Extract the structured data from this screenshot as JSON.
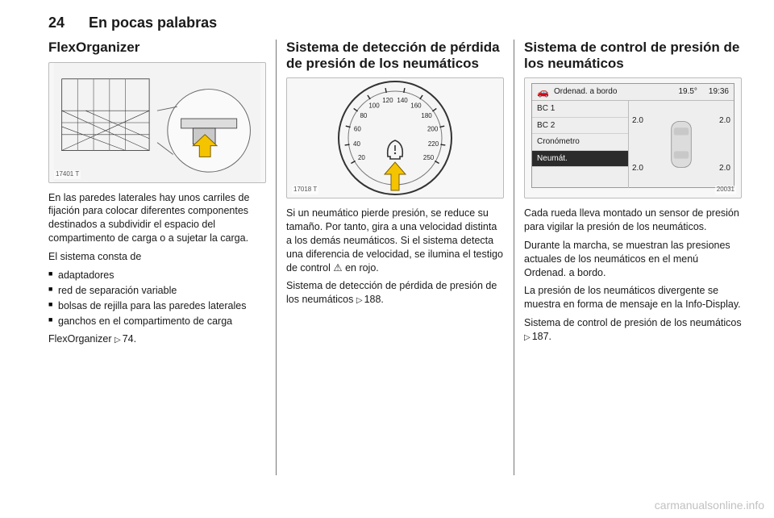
{
  "header": {
    "page_number": "24",
    "chapter_title": "En pocas palabras"
  },
  "col1": {
    "title": "FlexOrganizer",
    "fig_label": "17401 T",
    "intro": "En las paredes laterales hay unos carriles de fijación para colocar diferentes componentes destinados a subdividir el espacio del compartimento de carga o a sujetar la carga.",
    "list_lead": "El sistema consta de",
    "items": [
      "adaptadores",
      "red de separación variable",
      "bolsas de rejilla para las paredes laterales",
      "ganchos en el compartimento de carga"
    ],
    "ref_text": "FlexOrganizer ",
    "ref_page": "74."
  },
  "col2": {
    "title": "Sistema de detección de pérdida de presión de los neumáticos",
    "fig_label": "17018 T",
    "gauge": {
      "ticks": [
        "20",
        "40",
        "60",
        "80",
        "100",
        "120",
        "140",
        "160",
        "180",
        "200",
        "220",
        "250"
      ],
      "arrow_color": "#f5c400",
      "dial_bg": "#f5f5f5",
      "dial_border": "#333333"
    },
    "p1": "Si un neumático pierde presión, se reduce su tamaño. Por tanto, gira a una velocidad distinta a los demás neumáticos. Si el sistema detecta una diferencia de velocidad, se ilumina el testigo de control ",
    "p1_icon": "⚠",
    "p1_tail": " en rojo.",
    "ref_text": "Sistema de detección de pérdida de presión de los neumáticos ",
    "ref_page": "188."
  },
  "col3": {
    "title": "Sistema de control de presión de los neumáticos",
    "fig_label": "20031",
    "display": {
      "top_title": "Ordenad. a bordo",
      "temp": "19.5°",
      "time": "19:36",
      "menu": [
        "BC 1",
        "BC 2",
        "Cronómetro",
        "Neumát."
      ],
      "selected_index": 3,
      "tire_values": {
        "fl": "2.0",
        "fr": "2.0",
        "rl": "2.0",
        "rr": "2.0"
      },
      "bg": "#eeeeee",
      "sel_bg": "#2b2b2b",
      "sel_fg": "#ffffff"
    },
    "p1": "Cada rueda lleva montado un sensor de presión para vigilar la presión de los neumáticos.",
    "p2": "Durante la marcha, se muestran las presiones actuales de los neumáticos en el menú Ordenad. a bordo.",
    "p3": "La presión de los neumáticos divergente se muestra en forma de mensaje en la Info-Display.",
    "ref_text": "Sistema de control de presión de los neumáticos ",
    "ref_page": "187."
  },
  "watermark": "carmanualsonline.info"
}
